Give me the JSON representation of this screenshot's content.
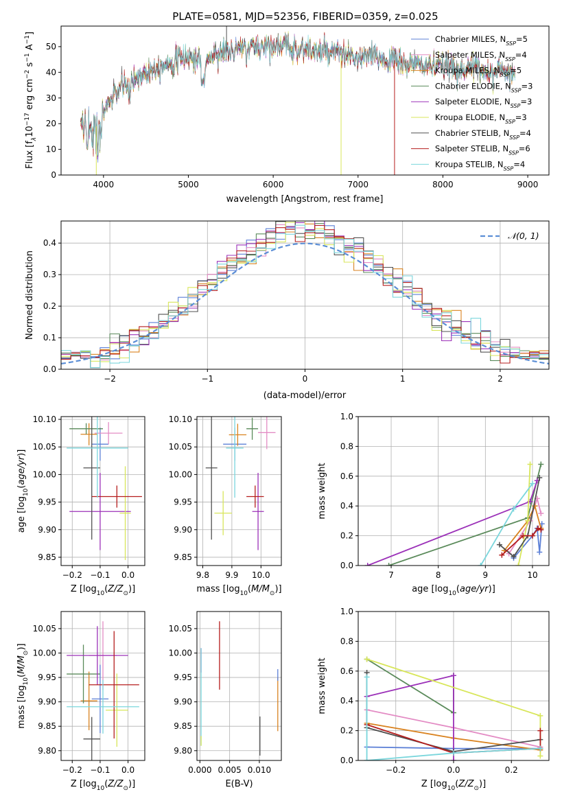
{
  "figure": {
    "title": "PLATE=0581, MJD=52356, FIBERID=0359, z=0.025"
  },
  "colors": {
    "Chabrier MILES": "#5b7fd6",
    "Salpeter MILES": "#e38bc4",
    "Kroupa MILES": "#d9821f",
    "Chabrier ELODIE": "#5a8a5a",
    "Salpeter ELODIE": "#9b30b8",
    "Kroupa ELODIE": "#d8e65a",
    "Chabrier STELIB": "#505050",
    "Salpeter STELIB": "#b51c1c",
    "Kroupa STELIB": "#7ad6dc"
  },
  "legend_spectrum": [
    {
      "name": "Chabrier MILES",
      "nssp": "5"
    },
    {
      "name": "Salpeter MILES",
      "nssp": "4"
    },
    {
      "name": "Kroupa MILES",
      "nssp": "5"
    },
    {
      "name": "Chabrier ELODIE",
      "nssp": "3"
    },
    {
      "name": "Salpeter ELODIE",
      "nssp": "3"
    },
    {
      "name": "Kroupa ELODIE",
      "nssp": "3"
    },
    {
      "name": "Chabrier STELIB",
      "nssp": "4"
    },
    {
      "name": "Salpeter STELIB",
      "nssp": "6"
    },
    {
      "name": "Kroupa STELIB",
      "nssp": "4"
    }
  ],
  "chart_data": [
    {
      "id": "spectrum",
      "type": "line",
      "xlabel": "wavelength [Angstrom, rest frame]",
      "ylabel": "Flux [f_λ 10^-17 erg cm^-2 s^-1 A^-1]",
      "xlim": [
        3500,
        9250
      ],
      "ylim": [
        0,
        58
      ],
      "xticks": [
        4000,
        5000,
        6000,
        7000,
        8000,
        9000
      ],
      "yticks": [
        0,
        10,
        20,
        30,
        40,
        50
      ],
      "continuum": {
        "x": [
          3730,
          3800,
          3900,
          4000,
          4100,
          4200,
          4300,
          4400,
          4500,
          4600,
          4700,
          4800,
          4900,
          5000,
          5100,
          5200,
          5300,
          5400,
          5500,
          5600,
          5700,
          5800,
          5900,
          6000,
          6100,
          6200,
          6300,
          6400,
          6500,
          6600,
          6700,
          6800,
          6900,
          7000,
          7100,
          7200,
          7300,
          7400,
          7500,
          7600,
          7700,
          7800,
          7900,
          8000,
          8100,
          8200,
          8300,
          8400,
          8500,
          8600,
          8700,
          8800,
          8850
        ],
        "y": [
          17,
          19,
          18,
          25,
          30,
          34,
          36,
          38,
          40,
          42,
          43,
          44,
          45,
          46,
          45,
          44,
          47,
          48,
          48,
          49,
          49,
          50,
          50,
          51,
          50,
          50,
          49,
          49,
          48,
          48,
          47,
          47,
          46,
          45,
          46,
          46,
          45,
          45,
          44,
          43,
          43,
          43,
          42,
          42,
          42,
          41,
          42,
          41,
          41,
          40,
          41,
          40,
          40
        ]
      },
      "dips": [
        {
          "x": 3915,
          "y": 0,
          "series": "Kroupa ELODIE"
        },
        {
          "x": 6800,
          "y": 0,
          "series": "Kroupa ELODIE"
        },
        {
          "x": 7430,
          "y": 0,
          "series": "Salpeter STELIB"
        },
        {
          "x": 5450,
          "y": 58,
          "series": "Chabrier STELIB"
        }
      ]
    },
    {
      "id": "residual_hist",
      "type": "line",
      "xlabel": "(data-model)/error",
      "ylabel": "Normed distribution",
      "xlim": [
        -2.5,
        2.5
      ],
      "ylim": [
        0,
        0.47
      ],
      "xticks": [
        -2,
        -1,
        0,
        1,
        2
      ],
      "yticks": [
        0.0,
        0.1,
        0.2,
        0.3,
        0.4
      ],
      "legend": "N(0,1)",
      "bin_width": 0.1
    },
    {
      "id": "age_vs_Z",
      "type": "scatter",
      "xlabel": "Z [log10(Z/Z☉)]",
      "ylabel": "age  [log10(age/yr)]",
      "xlim": [
        -0.24,
        0.06
      ],
      "ylim": [
        9.835,
        10.105
      ],
      "xticks": [
        -0.2,
        -0.1,
        0.0
      ],
      "yticks": [
        9.85,
        9.9,
        9.95,
        10.0,
        10.05,
        10.1
      ],
      "points": [
        {
          "series": "Chabrier MILES",
          "x": -0.1,
          "y": 10.055,
          "xerr": 0.03,
          "yerr": 0.03
        },
        {
          "series": "Salpeter MILES",
          "x": -0.07,
          "y": 10.075,
          "xerr": 0.05,
          "yerr": 0.02
        },
        {
          "series": "Kroupa MILES",
          "x": -0.14,
          "y": 10.073,
          "xerr": 0.03,
          "yerr": 0.02
        },
        {
          "series": "Chabrier ELODIE",
          "x": -0.15,
          "y": 10.083,
          "xerr": 0.06,
          "yerr": 0.01
        },
        {
          "series": "Salpeter ELODIE",
          "x": -0.1,
          "y": 9.933,
          "xerr": 0.11,
          "yerr": 0.07
        },
        {
          "series": "Kroupa ELODIE",
          "x": -0.01,
          "y": 9.93,
          "xerr": 0.02,
          "yerr": 0.085
        },
        {
          "series": "Chabrier STELIB",
          "x": -0.13,
          "y": 10.012,
          "xerr": 0.03,
          "yerr": 0.13
        },
        {
          "series": "Salpeter STELIB",
          "x": -0.04,
          "y": 9.96,
          "xerr": 0.09,
          "yerr": 0.02
        },
        {
          "series": "Kroupa STELIB",
          "x": -0.11,
          "y": 10.048,
          "xerr": 0.11,
          "yerr": 0.09
        }
      ]
    },
    {
      "id": "age_vs_mass",
      "type": "scatter",
      "xlabel": "mass [log10(M/M☉)]",
      "ylabel": "",
      "xlim": [
        9.78,
        10.07
      ],
      "ylim": [
        9.835,
        10.105
      ],
      "xticks": [
        9.8,
        9.9,
        10.0
      ],
      "yticks": [
        9.85,
        9.9,
        9.95,
        10.0,
        10.05,
        10.1
      ],
      "points": [
        {
          "series": "Chabrier MILES",
          "x": 9.91,
          "y": 10.055,
          "xerr": 0.04,
          "yerr": 0.03
        },
        {
          "series": "Salpeter MILES",
          "x": 10.02,
          "y": 10.076,
          "xerr": 0.03,
          "yerr": 0.03
        },
        {
          "series": "Kroupa MILES",
          "x": 9.92,
          "y": 10.072,
          "xerr": 0.03,
          "yerr": 0.02
        },
        {
          "series": "Chabrier ELODIE",
          "x": 9.97,
          "y": 10.083,
          "xerr": 0.02,
          "yerr": 0.02
        },
        {
          "series": "Salpeter ELODIE",
          "x": 9.99,
          "y": 9.933,
          "xerr": 0.02,
          "yerr": 0.07
        },
        {
          "series": "Kroupa ELODIE",
          "x": 9.87,
          "y": 9.93,
          "xerr": 0.03,
          "yerr": 0.04
        },
        {
          "series": "Chabrier STELIB",
          "x": 9.83,
          "y": 10.012,
          "xerr": 0.02,
          "yerr": 0.13
        },
        {
          "series": "Salpeter STELIB",
          "x": 9.98,
          "y": 9.96,
          "xerr": 0.03,
          "yerr": 0.02
        },
        {
          "series": "Kroupa STELIB",
          "x": 9.91,
          "y": 10.048,
          "xerr": 0.03,
          "yerr": 0.09
        }
      ]
    },
    {
      "id": "weight_vs_age",
      "type": "line",
      "xlabel": "age  [log10(age/yr)]",
      "ylabel": "mass weight",
      "xlim": [
        6.3,
        10.35
      ],
      "ylim": [
        0,
        1.0
      ],
      "xticks": [
        7,
        8,
        9,
        10
      ],
      "yticks": [
        0.0,
        0.2,
        0.4,
        0.6,
        0.8,
        1.0
      ],
      "series": [
        {
          "name": "Chabrier MILES",
          "x": [
            9.6,
            10.0,
            10.1,
            10.15,
            10.2
          ],
          "y": [
            0.05,
            0.2,
            0.25,
            0.09,
            0.28
          ]
        },
        {
          "name": "Salpeter MILES",
          "x": [
            9.5,
            9.95,
            10.1,
            10.18
          ],
          "y": [
            0.08,
            0.3,
            0.45,
            0.35
          ]
        },
        {
          "name": "Kroupa MILES",
          "x": [
            9.4,
            9.9,
            10.05,
            10.18
          ],
          "y": [
            0.1,
            0.3,
            0.4,
            0.25
          ]
        },
        {
          "name": "Chabrier ELODIE",
          "x": [
            6.95,
            9.9,
            10.18
          ],
          "y": [
            0.0,
            0.32,
            0.68
          ]
        },
        {
          "name": "Salpeter ELODIE",
          "x": [
            6.5,
            9.95,
            10.1
          ],
          "y": [
            0.0,
            0.43,
            0.57
          ]
        },
        {
          "name": "Kroupa ELODIE",
          "x": [
            9.7,
            9.9,
            9.95
          ],
          "y": [
            0.0,
            0.3,
            0.68
          ]
        },
        {
          "name": "Chabrier STELIB",
          "x": [
            9.3,
            9.6,
            9.9,
            10.15
          ],
          "y": [
            0.14,
            0.06,
            0.2,
            0.59
          ]
        },
        {
          "name": "Salpeter STELIB",
          "x": [
            9.35,
            9.8,
            10.0,
            10.12,
            10.18
          ],
          "y": [
            0.07,
            0.2,
            0.2,
            0.25,
            0.24
          ]
        },
        {
          "name": "Kroupa STELIB",
          "x": [
            8.9,
            9.6,
            10.0
          ],
          "y": [
            0.0,
            0.38,
            0.55
          ]
        }
      ]
    },
    {
      "id": "mass_vs_Z",
      "type": "scatter",
      "xlabel": "Z [log10(Z/Z☉)]",
      "ylabel": "mass [log10(M/M☉)]",
      "xlim": [
        -0.24,
        0.06
      ],
      "ylim": [
        9.78,
        10.085
      ],
      "xticks": [
        -0.2,
        -0.1,
        0.0
      ],
      "yticks": [
        9.8,
        9.85,
        9.9,
        9.95,
        10.0,
        10.05
      ],
      "points": [
        {
          "series": "Chabrier MILES",
          "x": -0.1,
          "y": 9.906,
          "xerr": 0.03,
          "yerr": 0.07
        },
        {
          "series": "Salpeter MILES",
          "x": -0.09,
          "y": 9.995,
          "xerr": 0.05,
          "yerr": 0.07
        },
        {
          "series": "Kroupa MILES",
          "x": -0.14,
          "y": 9.902,
          "xerr": 0.03,
          "yerr": 0.06
        },
        {
          "series": "Chabrier ELODIE",
          "x": -0.16,
          "y": 9.957,
          "xerr": 0.06,
          "yerr": 0.06
        },
        {
          "series": "Salpeter ELODIE",
          "x": -0.11,
          "y": 9.995,
          "xerr": 0.11,
          "yerr": 0.06
        },
        {
          "series": "Kroupa ELODIE",
          "x": -0.04,
          "y": 9.883,
          "xerr": 0.04,
          "yerr": 0.075
        },
        {
          "series": "Chabrier STELIB",
          "x": -0.13,
          "y": 9.824,
          "xerr": 0.03,
          "yerr": 0.045
        },
        {
          "series": "Salpeter STELIB",
          "x": -0.05,
          "y": 9.935,
          "xerr": 0.09,
          "yerr": 0.11
        },
        {
          "series": "Kroupa STELIB",
          "x": -0.09,
          "y": 9.89,
          "xerr": 0.13,
          "yerr": 0.055
        }
      ]
    },
    {
      "id": "mass_vs_EBV",
      "type": "scatter",
      "xlabel": "E(B-V)",
      "ylabel": "",
      "xlim": [
        -0.0005,
        0.0137
      ],
      "ylim": [
        9.78,
        10.085
      ],
      "xticks": [
        0.0,
        0.005,
        0.01
      ],
      "yticks": [
        9.8,
        9.85,
        9.9,
        9.95,
        10.0,
        10.05
      ],
      "points": [
        {
          "series": "Salpeter ELODIE",
          "x": 0.0002,
          "y": 9.985,
          "xerr": 0,
          "yerr": 0.025
        },
        {
          "series": "Kroupa STELIB",
          "x": 0.0002,
          "y": 9.91,
          "xerr": 0,
          "yerr": 0.1
        },
        {
          "series": "Kroupa ELODIE",
          "x": 0.0002,
          "y": 9.82,
          "xerr": 0,
          "yerr": 0.01
        },
        {
          "series": "Salpeter STELIB",
          "x": 0.0033,
          "y": 9.995,
          "xerr": 0,
          "yerr": 0.07
        },
        {
          "series": "Chabrier STELIB",
          "x": 0.0101,
          "y": 9.83,
          "xerr": 0,
          "yerr": 0.04
        },
        {
          "series": "Kroupa MILES",
          "x": 0.0131,
          "y": 9.895,
          "xerr": 0,
          "yerr": 0.055
        },
        {
          "series": "Chabrier MILES",
          "x": 0.0131,
          "y": 9.955,
          "xerr": 0,
          "yerr": 0.012
        }
      ]
    },
    {
      "id": "weight_vs_Z",
      "type": "line",
      "xlabel": "Z [log10(Z/Z☉)]",
      "ylabel": "mass weight",
      "xlim": [
        -0.33,
        0.33
      ],
      "ylim": [
        0,
        1.0
      ],
      "xticks": [
        -0.2,
        0.0,
        0.2
      ],
      "yticks": [
        0.0,
        0.2,
        0.4,
        0.6,
        0.8,
        1.0
      ],
      "series": [
        {
          "name": "Chabrier MILES",
          "x": [
            -0.3,
            0.0,
            0.3
          ],
          "y": [
            0.09,
            0.08,
            0.08
          ]
        },
        {
          "name": "Salpeter MILES",
          "x": [
            -0.3,
            0.0,
            0.3
          ],
          "y": [
            0.34,
            0.22,
            0.09
          ]
        },
        {
          "name": "Kroupa MILES",
          "x": [
            -0.3,
            0.0,
            0.3
          ],
          "y": [
            0.25,
            0.15,
            0.07
          ]
        },
        {
          "name": "Chabrier ELODIE",
          "x": [
            -0.3,
            0.0,
            0.0
          ],
          "y": [
            0.68,
            0.32,
            0.57
          ]
        },
        {
          "name": "Salpeter ELODIE",
          "x": [
            -0.3,
            0.0,
            0.0
          ],
          "y": [
            0.43,
            0.57,
            0.0
          ]
        },
        {
          "name": "Kroupa ELODIE",
          "x": [
            -0.3,
            0.3,
            0.3
          ],
          "y": [
            0.68,
            0.3,
            0.03
          ]
        },
        {
          "name": "Chabrier STELIB",
          "x": [
            -0.3,
            -0.3,
            0.0,
            0.3
          ],
          "y": [
            0.59,
            0.22,
            0.06,
            0.14
          ]
        },
        {
          "name": "Salpeter STELIB",
          "x": [
            -0.3,
            0.0,
            0.3,
            0.3
          ],
          "y": [
            0.24,
            0.05,
            0.08,
            0.2
          ]
        },
        {
          "name": "Kroupa STELIB",
          "x": [
            -0.3,
            -0.3,
            0.0,
            0.3
          ],
          "y": [
            0.56,
            0.0,
            0.05,
            0.08
          ]
        }
      ]
    }
  ]
}
